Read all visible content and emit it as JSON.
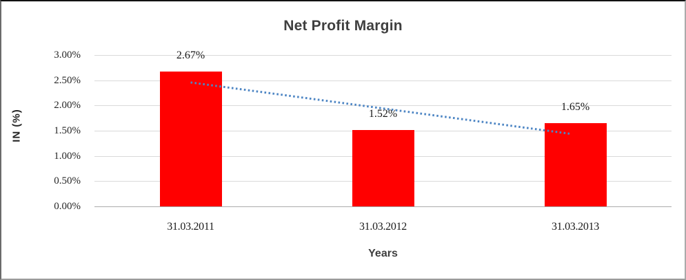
{
  "chart": {
    "colors": {
      "bar": "#ff0000",
      "trendline": "#4e86c4",
      "gridline": "#d9d9d9",
      "axis_line": "#ababab",
      "title_text": "#3f3f3f",
      "label_text": "#1a1a1a"
    }
  },
  "chart_data": {
    "type": "bar",
    "title": "Net Profit Margin",
    "xlabel": "Years",
    "ylabel": "IN (%)",
    "categories": [
      "31.03.2011",
      "31.03.2012",
      "31.03.2013"
    ],
    "values": [
      2.67,
      1.52,
      1.65
    ],
    "data_labels": [
      "2.67%",
      "1.52%",
      "1.65%"
    ],
    "ylim": [
      0,
      3.0
    ],
    "ytick_step": 0.5,
    "ytick_labels": [
      "0.00%",
      "0.50%",
      "1.00%",
      "1.50%",
      "2.00%",
      "2.50%",
      "3.00%"
    ],
    "grid": true,
    "legend": "none",
    "trendline": {
      "style": "dotted",
      "start_value": 2.4567,
      "end_value": 1.4367
    }
  }
}
